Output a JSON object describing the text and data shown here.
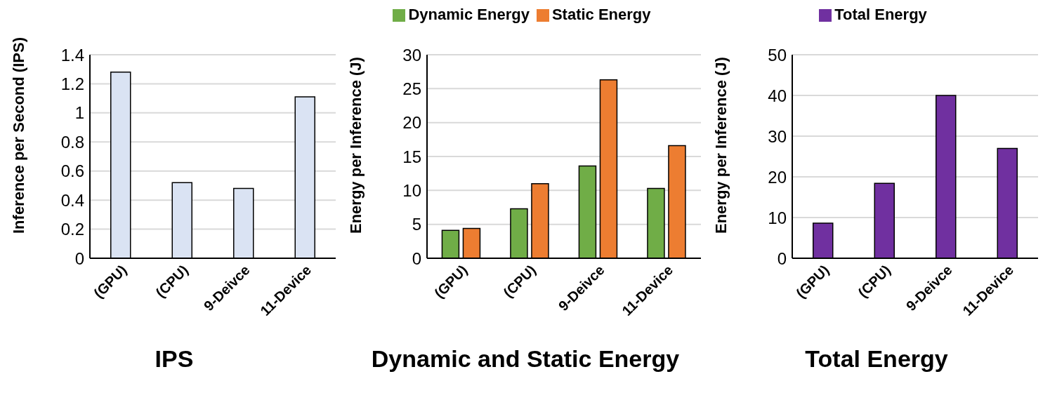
{
  "chart_data": [
    {
      "type": "bar",
      "title": "IPS",
      "ylabel": "Inference per Second (IPS)",
      "categories": [
        "(GPU)",
        "(CPU)",
        "9-Deivce",
        "11-Device"
      ],
      "series": [
        {
          "color": "#dae3f3",
          "values": [
            1.28,
            0.52,
            0.48,
            1.11
          ]
        }
      ],
      "ylim": [
        0,
        1.4
      ],
      "yticks": [
        0,
        0.2,
        0.4,
        0.6,
        0.8,
        1,
        1.2,
        1.4
      ],
      "grid": "y",
      "legend": false
    },
    {
      "type": "bar",
      "title": "Dynamic and Static Energy",
      "ylabel": "Energy per Inference (J)",
      "categories": [
        "(GPU)",
        "(CPU)",
        "9-Deivce",
        "11-Device"
      ],
      "series": [
        {
          "name": "Dynamic Energy",
          "color": "#70ad47",
          "values": [
            4.1,
            7.3,
            13.6,
            10.3
          ]
        },
        {
          "name": "Static Energy",
          "color": "#ed7d31",
          "values": [
            4.4,
            11,
            26.3,
            16.6
          ]
        }
      ],
      "ylim": [
        0,
        30
      ],
      "yticks": [
        0,
        5,
        10,
        15,
        20,
        25,
        30
      ],
      "grid": "y",
      "legend": "top"
    },
    {
      "type": "bar",
      "title": "Total Energy",
      "ylabel": "Energy per Inference (J)",
      "categories": [
        "(GPU)",
        "(CPU)",
        "9-Deivce",
        "11-Device"
      ],
      "series": [
        {
          "name": "Total Energy",
          "color": "#7030a0",
          "values": [
            8.6,
            18.4,
            40,
            27
          ]
        }
      ],
      "ylim": [
        0,
        50
      ],
      "yticks": [
        0,
        10,
        20,
        30,
        40,
        50
      ],
      "grid": "y",
      "legend": "top"
    }
  ]
}
